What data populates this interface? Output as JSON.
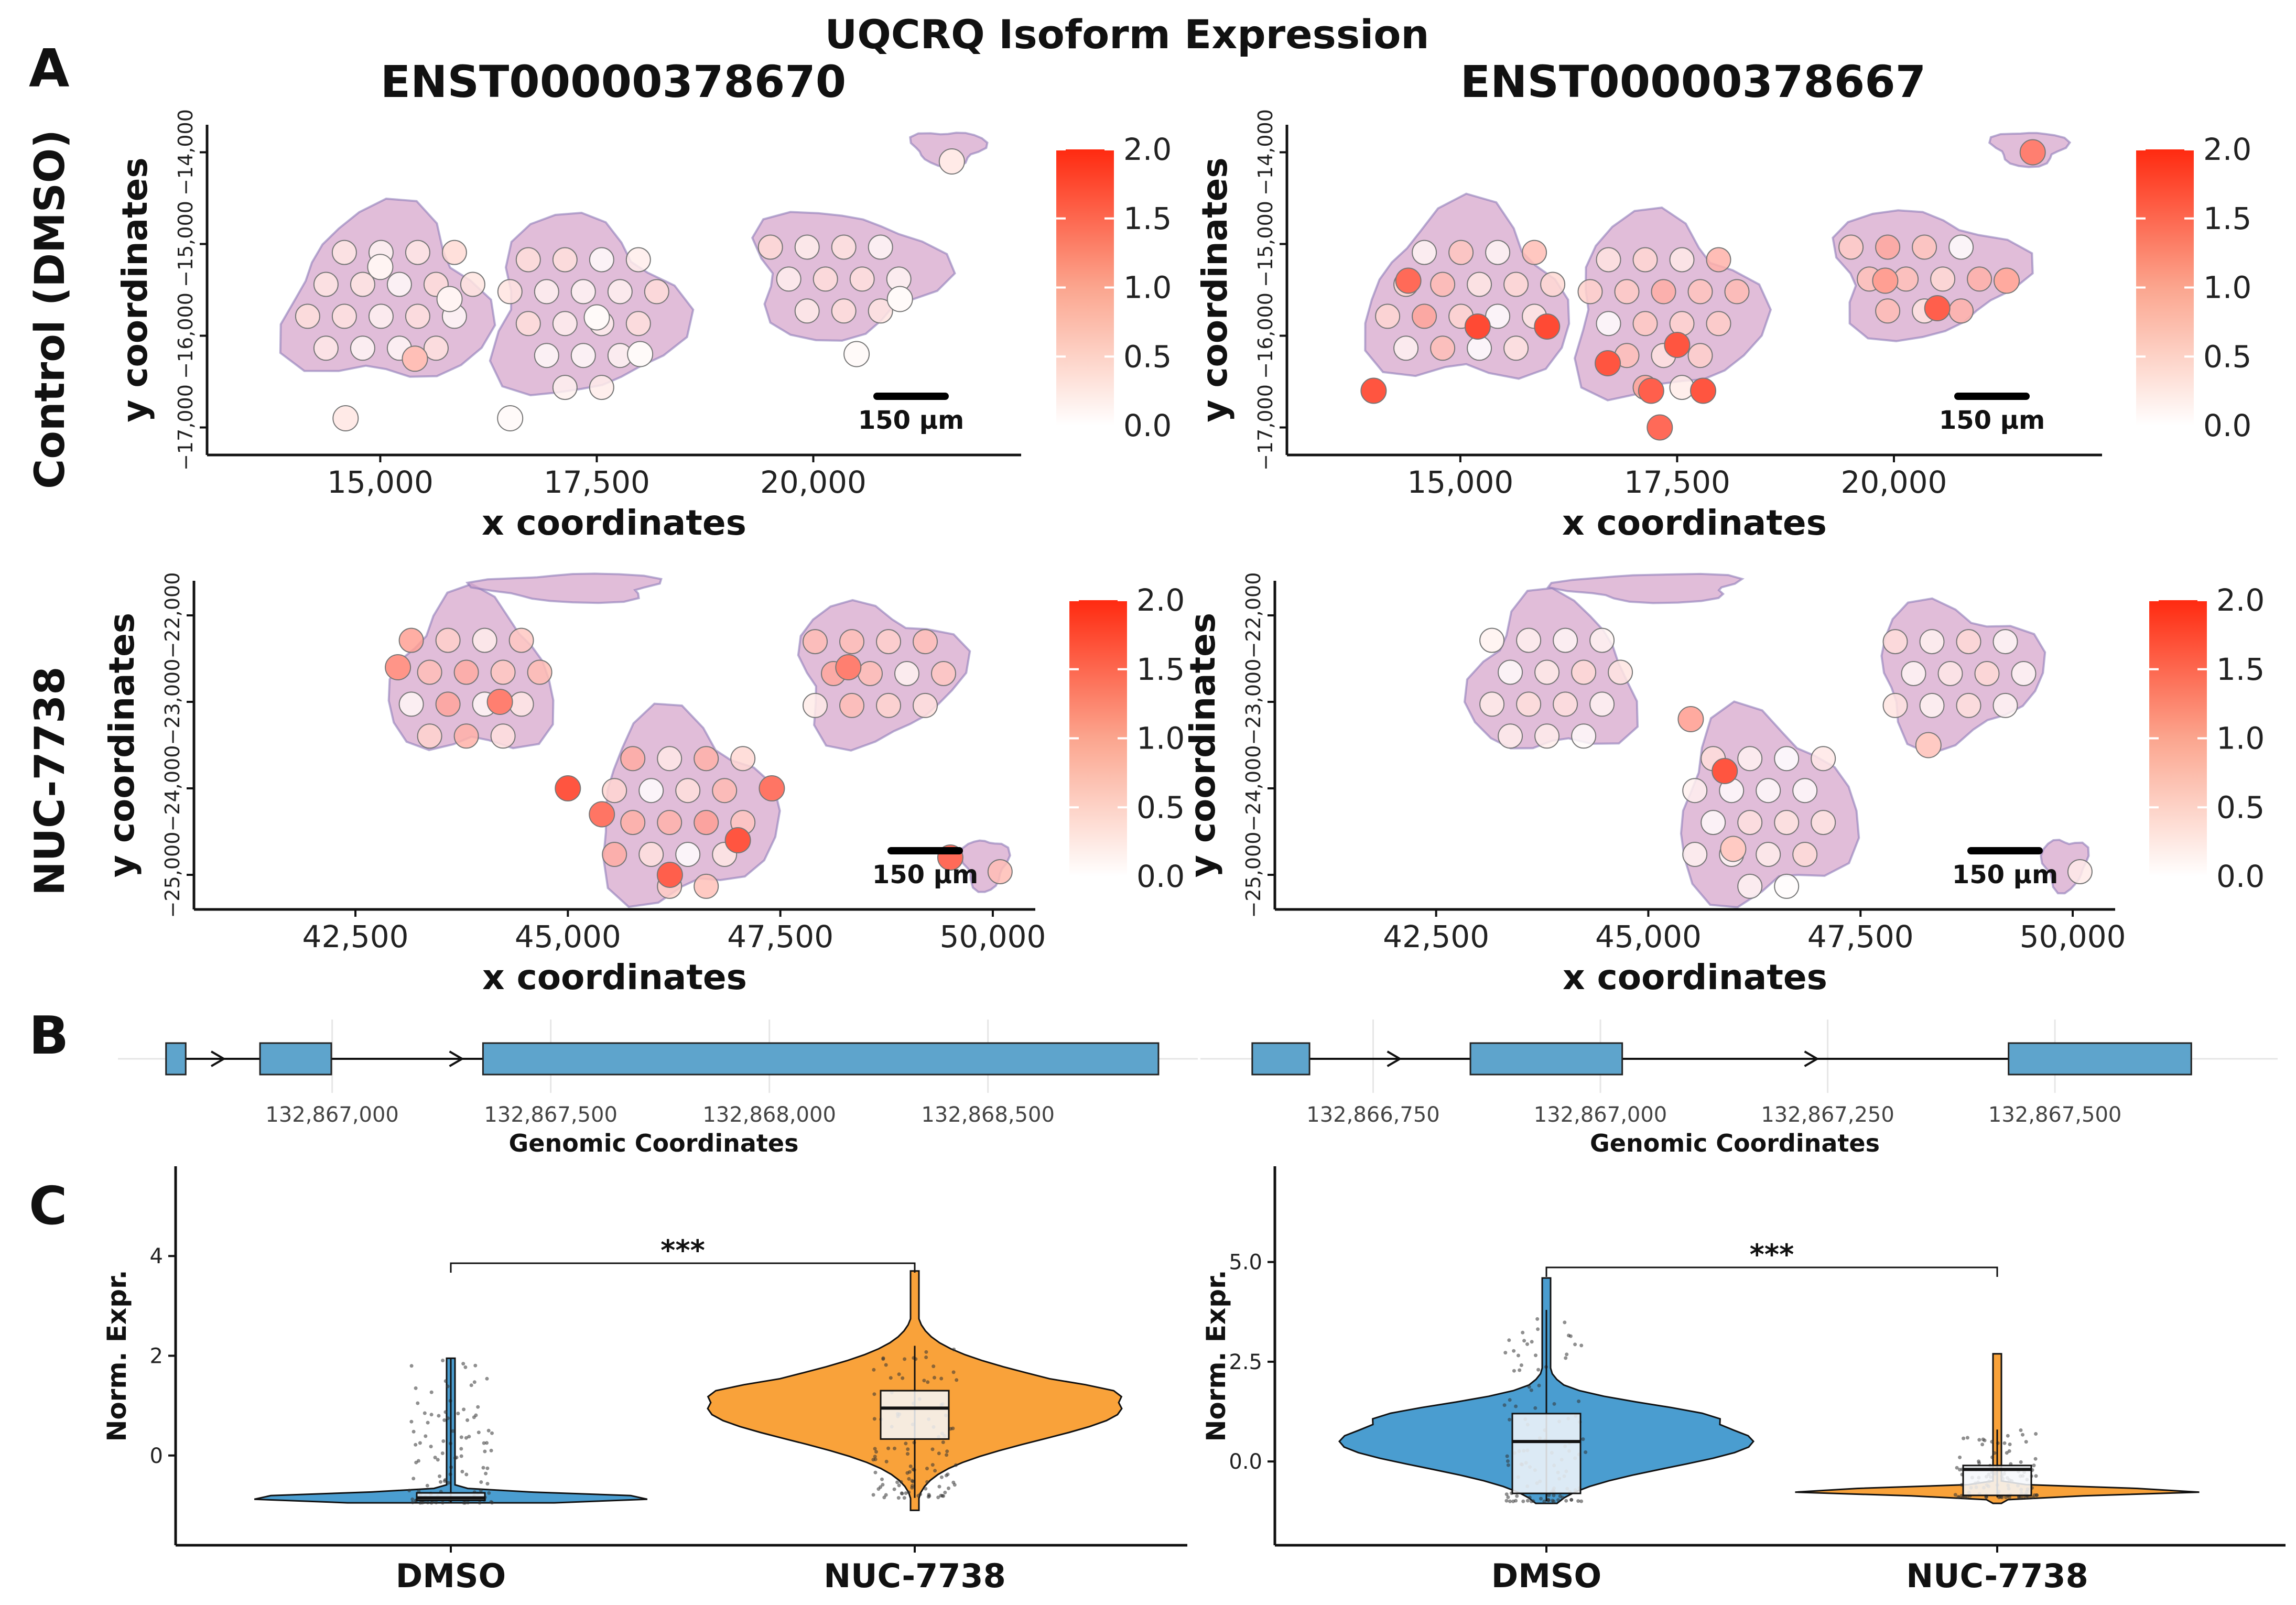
{
  "title": "UQCRQ Isoform Expression",
  "panel_labels": [
    "A",
    "B",
    "C"
  ],
  "transcripts": [
    "ENST00000378670",
    "ENST00000378667"
  ],
  "row_labels": [
    "Control (DMSO)",
    "NUC-7738"
  ],
  "scale_bar": "150 µm",
  "colors": {
    "low": "#ffffff",
    "high": "#ff2a10",
    "dmso": "#4a9dd0",
    "nuc": "#f9a23a",
    "tissue": "#d7a7cc",
    "exon": "#5ea4cc"
  },
  "chart_data": [
    {
      "type": "scatter",
      "name": "A-control-ENST00000378670",
      "xlabel": "x coordinates",
      "ylabel": "y coordinates",
      "x_ticks": [
        "15,000",
        "17,500",
        "20,000"
      ],
      "y_ticks": [
        "−17,000",
        "−16,000",
        "−15,000",
        "−14,000"
      ],
      "xlim": [
        13000,
        22400
      ],
      "ylim": [
        -17300,
        -13700
      ],
      "colorbar": {
        "ticks": [
          "0.0",
          "0.5",
          "1.0",
          "1.5",
          "2.0"
        ],
        "range": [
          0,
          2
        ]
      },
      "spots_note": "Spots mostly low expression (0.0–0.5), one ~0.6 spot",
      "spots": [
        [
          15400,
          -16250,
          0.6
        ],
        [
          15000,
          -15250,
          0.1
        ],
        [
          15800,
          -15600,
          0.1
        ],
        [
          14600,
          -16900,
          0.2
        ],
        [
          17500,
          -15800,
          0.05
        ],
        [
          16500,
          -16900,
          0.05
        ],
        [
          18000,
          -16200,
          0.05
        ],
        [
          20500,
          -16200,
          0.05
        ],
        [
          21000,
          -15600,
          0.05
        ],
        [
          21600,
          -14100,
          0.2
        ]
      ]
    },
    {
      "type": "scatter",
      "name": "A-control-ENST00000378667",
      "xlabel": "x coordinates",
      "ylabel": "y coordinates",
      "x_ticks": [
        "15,000",
        "17,500",
        "20,000"
      ],
      "y_ticks": [
        "−17,000",
        "−16,000",
        "−15,000",
        "−14,000"
      ],
      "xlim": [
        13000,
        22400
      ],
      "ylim": [
        -17300,
        -13700
      ],
      "colorbar": {
        "ticks": [
          "0.0",
          "0.5",
          "1.0",
          "1.5",
          "2.0"
        ],
        "range": [
          0,
          2
        ]
      },
      "spots": [
        [
          14000,
          -16600,
          1.6
        ],
        [
          15200,
          -15900,
          1.7
        ],
        [
          14400,
          -15400,
          1.4
        ],
        [
          16000,
          -15900,
          1.7
        ],
        [
          16700,
          -16300,
          1.6
        ],
        [
          17200,
          -16600,
          1.5
        ],
        [
          17500,
          -16100,
          1.6
        ],
        [
          17800,
          -16600,
          1.6
        ],
        [
          17300,
          -17000,
          1.4
        ],
        [
          20500,
          -15700,
          1.5
        ],
        [
          19900,
          -15400,
          0.9
        ],
        [
          21300,
          -15400,
          0.8
        ],
        [
          21600,
          -14000,
          1.2
        ]
      ]
    },
    {
      "type": "scatter",
      "name": "A-nuc-ENST00000378670",
      "xlabel": "x coordinates",
      "ylabel": "y coordinates",
      "x_ticks": [
        "42,500",
        "45,000",
        "47,500",
        "50,000"
      ],
      "y_ticks": [
        "−25,000",
        "−24,000",
        "−23,000",
        "−22,000"
      ],
      "xlim": [
        40600,
        50500
      ],
      "ylim": [
        -25400,
        -21600
      ],
      "colorbar": {
        "ticks": [
          "0.0",
          "0.5",
          "1.0",
          "1.5",
          "2.0"
        ],
        "range": [
          0,
          2
        ]
      },
      "spots": [
        [
          45000,
          -24000,
          1.6
        ],
        [
          46200,
          -25000,
          1.5
        ],
        [
          47000,
          -24600,
          1.6
        ],
        [
          47400,
          -24000,
          1.3
        ],
        [
          44200,
          -23000,
          1.2
        ],
        [
          45400,
          -24300,
          1.3
        ],
        [
          43000,
          -22600,
          1.0
        ],
        [
          48300,
          -22600,
          1.2
        ],
        [
          49500,
          -24800,
          1.4
        ]
      ]
    },
    {
      "type": "scatter",
      "name": "A-nuc-ENST00000378667",
      "xlabel": "x coordinates",
      "ylabel": "y coordinates",
      "x_ticks": [
        "42,500",
        "45,000",
        "47,500",
        "50,000"
      ],
      "y_ticks": [
        "−25,000",
        "−24,000",
        "−23,000",
        "−22,000"
      ],
      "xlim": [
        40600,
        50500
      ],
      "ylim": [
        -25400,
        -21600
      ],
      "colorbar": {
        "ticks": [
          "0.0",
          "0.5",
          "1.0",
          "1.5",
          "2.0"
        ],
        "range": [
          0,
          2
        ]
      },
      "spots": [
        [
          45900,
          -23800,
          1.6
        ],
        [
          45500,
          -23200,
          0.8
        ],
        [
          48300,
          -23500,
          0.5
        ],
        [
          46000,
          -24700,
          0.5
        ]
      ]
    },
    {
      "type": "gene-track",
      "name": "B-ENST00000378670",
      "xlabel": "Genomic Coordinates",
      "x_ticks": [
        "132,867,000",
        "132,867,500",
        "132,868,000",
        "132,868,500"
      ],
      "tick_values": [
        132867000,
        132867500,
        132868000,
        132868500
      ],
      "xlim": [
        132866510,
        132868980
      ],
      "exons": [
        [
          132866620,
          132866665
        ],
        [
          132866835,
          132866998
        ],
        [
          132867345,
          132868890
        ]
      ],
      "arrows": [
        132866745,
        132867290
      ]
    },
    {
      "type": "gene-track",
      "name": "B-ENST00000378667",
      "xlabel": "Genomic Coordinates",
      "x_ticks": [
        "132,866,750",
        "132,867,000",
        "132,867,250",
        "132,867,500"
      ],
      "tick_values": [
        132866750,
        132867000,
        132867250,
        132867500
      ],
      "xlim": [
        132866560,
        132867745
      ],
      "exons": [
        [
          132866617,
          132866680
        ],
        [
          132866857,
          132867024
        ],
        [
          132867449,
          132867650
        ]
      ],
      "arrows": [
        132866776,
        132867235
      ]
    },
    {
      "type": "violin",
      "name": "C-ENST00000378670",
      "categories": [
        "DMSO",
        "NUC-7738"
      ],
      "ylabel": "Norm. Expr.",
      "y_ticks": [
        0,
        2,
        4
      ],
      "ylim": [
        -1.8,
        5.8
      ],
      "significance": "***",
      "box": [
        {
          "q1": -0.9,
          "median": -0.85,
          "q3": -0.75,
          "lower": -0.95,
          "upper": 1.95
        },
        {
          "q1": 0.33,
          "median": 0.95,
          "q3": 1.3,
          "lower": -0.85,
          "upper": 2.2
        }
      ],
      "violin_max": [
        1.95,
        3.7
      ],
      "violin_min": [
        -0.95,
        -1.1
      ]
    },
    {
      "type": "violin",
      "name": "C-ENST00000378667",
      "categories": [
        "DMSO",
        "NUC-7738"
      ],
      "ylabel": "Norm. Expr.",
      "y_ticks": [
        "0.0",
        "2.5",
        "5.0"
      ],
      "tick_values": [
        0,
        2.5,
        5
      ],
      "ylim": [
        -2.1,
        7.4
      ],
      "significance": "***",
      "box": [
        {
          "q1": -0.8,
          "median": 0.5,
          "q3": 1.2,
          "lower": -1.0,
          "upper": 3.8
        },
        {
          "q1": -0.85,
          "median": -0.2,
          "q3": -0.1,
          "lower": -0.9,
          "upper": 0.8
        }
      ],
      "violin_max": [
        4.6,
        2.7
      ],
      "violin_min": [
        -1.05,
        -1.05
      ]
    }
  ]
}
